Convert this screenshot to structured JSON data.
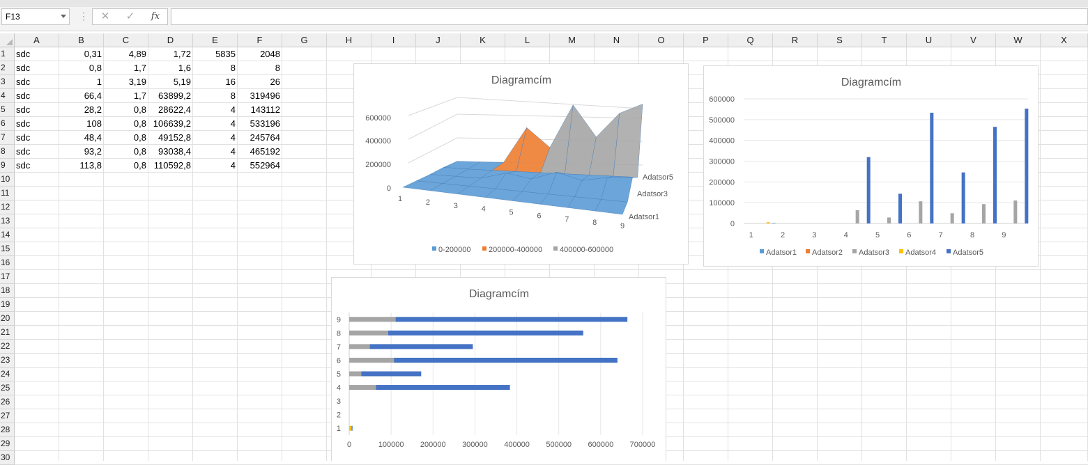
{
  "formula_bar": {
    "name_box": "F13",
    "cancel_icon": "✕",
    "enter_icon": "✓",
    "fx_label": "fx",
    "formula": ""
  },
  "columns": [
    "A",
    "B",
    "C",
    "D",
    "E",
    "F",
    "G",
    "H",
    "I",
    "J",
    "K",
    "L",
    "M",
    "N",
    "O",
    "P",
    "Q",
    "R",
    "S",
    "T",
    "U",
    "V",
    "W",
    "X"
  ],
  "rows": [
    "1",
    "2",
    "3",
    "4",
    "5",
    "6",
    "7",
    "8",
    "9",
    "10",
    "11",
    "12",
    "13",
    "14",
    "15",
    "16",
    "17",
    "18",
    "19",
    "20",
    "21",
    "22",
    "23",
    "24",
    "25",
    "26",
    "27",
    "28",
    "29",
    "30"
  ],
  "cells": [
    [
      "sdc",
      "0,31",
      "4,89",
      "1,72",
      "5835",
      "2048"
    ],
    [
      "sdc",
      "0,8",
      "1,7",
      "1,6",
      "8",
      "8"
    ],
    [
      "sdc",
      "1",
      "3,19",
      "5,19",
      "16",
      "26"
    ],
    [
      "sdc",
      "66,4",
      "1,7",
      "63899,2",
      "8",
      "319496"
    ],
    [
      "sdc",
      "28,2",
      "0,8",
      "28622,4",
      "4",
      "143112"
    ],
    [
      "sdc",
      "108",
      "0,8",
      "106639,2",
      "4",
      "533196"
    ],
    [
      "sdc",
      "48,4",
      "0,8",
      "49152,8",
      "4",
      "245764"
    ],
    [
      "sdc",
      "93,2",
      "0,8",
      "93038,4",
      "4",
      "465192"
    ],
    [
      "sdc",
      "113,8",
      "0,8",
      "110592,8",
      "4",
      "552964"
    ]
  ],
  "chart_data": [
    {
      "type": "surface",
      "title": "Diagramcím",
      "categories": [
        "1",
        "2",
        "3",
        "4",
        "5",
        "6",
        "7",
        "8",
        "9"
      ],
      "series_axis": [
        "Adatsor1",
        "Adatsor3",
        "Adatsor5"
      ],
      "series": [
        {
          "name": "Adatsor1",
          "values": [
            0.31,
            0.8,
            1,
            66.4,
            28.2,
            108,
            48.4,
            93.2,
            113.8
          ]
        },
        {
          "name": "Adatsor2",
          "values": [
            4.89,
            1.7,
            3.19,
            1.7,
            0.8,
            0.8,
            0.8,
            0.8,
            0.8
          ]
        },
        {
          "name": "Adatsor3",
          "values": [
            1.72,
            1.6,
            5.19,
            63899.2,
            28622.4,
            106639.2,
            49152.8,
            93038.4,
            110592.8
          ]
        },
        {
          "name": "Adatsor4",
          "values": [
            5835,
            8,
            16,
            8,
            4,
            4,
            4,
            4,
            4
          ]
        },
        {
          "name": "Adatsor5",
          "values": [
            2048,
            8,
            26,
            319496,
            143112,
            533196,
            245764,
            465192,
            552964
          ]
        }
      ],
      "z_ticks": [
        "0",
        "200000",
        "400000",
        "600000"
      ],
      "legend": [
        {
          "label": "0-200000",
          "color": "#5b9bd5"
        },
        {
          "label": "200000-400000",
          "color": "#ed7d31"
        },
        {
          "label": "400000-600000",
          "color": "#a5a5a5"
        }
      ]
    },
    {
      "type": "bar",
      "title": "Diagramcím",
      "categories": [
        "1",
        "2",
        "3",
        "4",
        "5",
        "6",
        "7",
        "8",
        "9"
      ],
      "ylim": [
        0,
        600000
      ],
      "y_ticks": [
        "0",
        "100000",
        "200000",
        "300000",
        "400000",
        "500000",
        "600000"
      ],
      "series": [
        {
          "name": "Adatsor1",
          "color": "#5b9bd5",
          "values": [
            0.31,
            0.8,
            1,
            66.4,
            28.2,
            108,
            48.4,
            93.2,
            113.8
          ]
        },
        {
          "name": "Adatsor2",
          "color": "#ed7d31",
          "values": [
            4.89,
            1.7,
            3.19,
            1.7,
            0.8,
            0.8,
            0.8,
            0.8,
            0.8
          ]
        },
        {
          "name": "Adatsor3",
          "color": "#a5a5a5",
          "values": [
            1.72,
            1.6,
            5.19,
            63899.2,
            28622.4,
            106639.2,
            49152.8,
            93038.4,
            110592.8
          ]
        },
        {
          "name": "Adatsor4",
          "color": "#ffc000",
          "values": [
            5835,
            8,
            16,
            8,
            4,
            4,
            4,
            4,
            4
          ]
        },
        {
          "name": "Adatsor5",
          "color": "#4472c4",
          "values": [
            2048,
            8,
            26,
            319496,
            143112,
            533196,
            245764,
            465192,
            552964
          ]
        }
      ],
      "legend_position": "bottom"
    },
    {
      "type": "stacked-bar-horizontal",
      "title": "Diagramcím",
      "categories": [
        "1",
        "2",
        "3",
        "4",
        "5",
        "6",
        "7",
        "8",
        "9"
      ],
      "xlim": [
        0,
        700000
      ],
      "x_ticks": [
        "0",
        "100000",
        "200000",
        "300000",
        "400000",
        "500000",
        "600000",
        "700000"
      ],
      "series": [
        {
          "color": "#5b9bd5",
          "values": [
            0.31,
            0.8,
            1,
            66.4,
            28.2,
            108,
            48.4,
            93.2,
            113.8
          ]
        },
        {
          "color": "#ed7d31",
          "values": [
            4.89,
            1.7,
            3.19,
            1.7,
            0.8,
            0.8,
            0.8,
            0.8,
            0.8
          ]
        },
        {
          "color": "#a5a5a5",
          "values": [
            1.72,
            1.6,
            5.19,
            63899.2,
            28622.4,
            106639.2,
            49152.8,
            93038.4,
            110592.8
          ]
        },
        {
          "color": "#ffc000",
          "values": [
            5835,
            8,
            16,
            8,
            4,
            4,
            4,
            4,
            4
          ]
        },
        {
          "color": "#4472c4",
          "values": [
            2048,
            8,
            26,
            319496,
            143112,
            533196,
            245764,
            465192,
            552964
          ]
        }
      ]
    }
  ]
}
